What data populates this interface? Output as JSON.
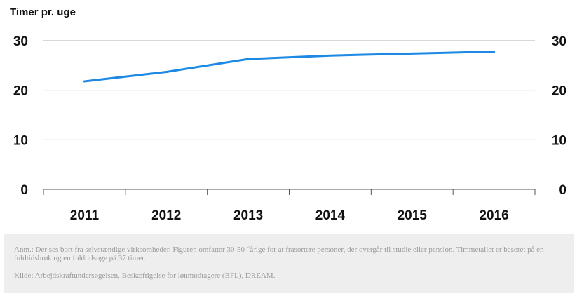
{
  "chart_data": {
    "type": "line",
    "unit_label": "Timer pr. uge",
    "x": [
      "2011",
      "2012",
      "2013",
      "2014",
      "2015",
      "2016"
    ],
    "series": [
      {
        "values": [
          21.8,
          23.7,
          26.3,
          27.0,
          27.4,
          27.8
        ],
        "color": "#1e88e5"
      }
    ],
    "yticks": [
      "0",
      "10",
      "20",
      "30"
    ],
    "ylim": [
      0,
      30
    ],
    "grid": true,
    "right_axis_mirror": true
  },
  "notes": {
    "annotation": "Anm.: Der ses bort fra selvstændige virksomheder. Figuren omfatter 30-50-˚årige for at frasortere personer, der overgår til studie eller pension. Timmetallet er baseret på en fuldtidsbrøk og en fuldtidsuge på 37 timer.",
    "source": "Kilde: Arbejdskraftundersøgelsen, Beskæftigelse for lønmodtagere (BFL), DREAM."
  }
}
